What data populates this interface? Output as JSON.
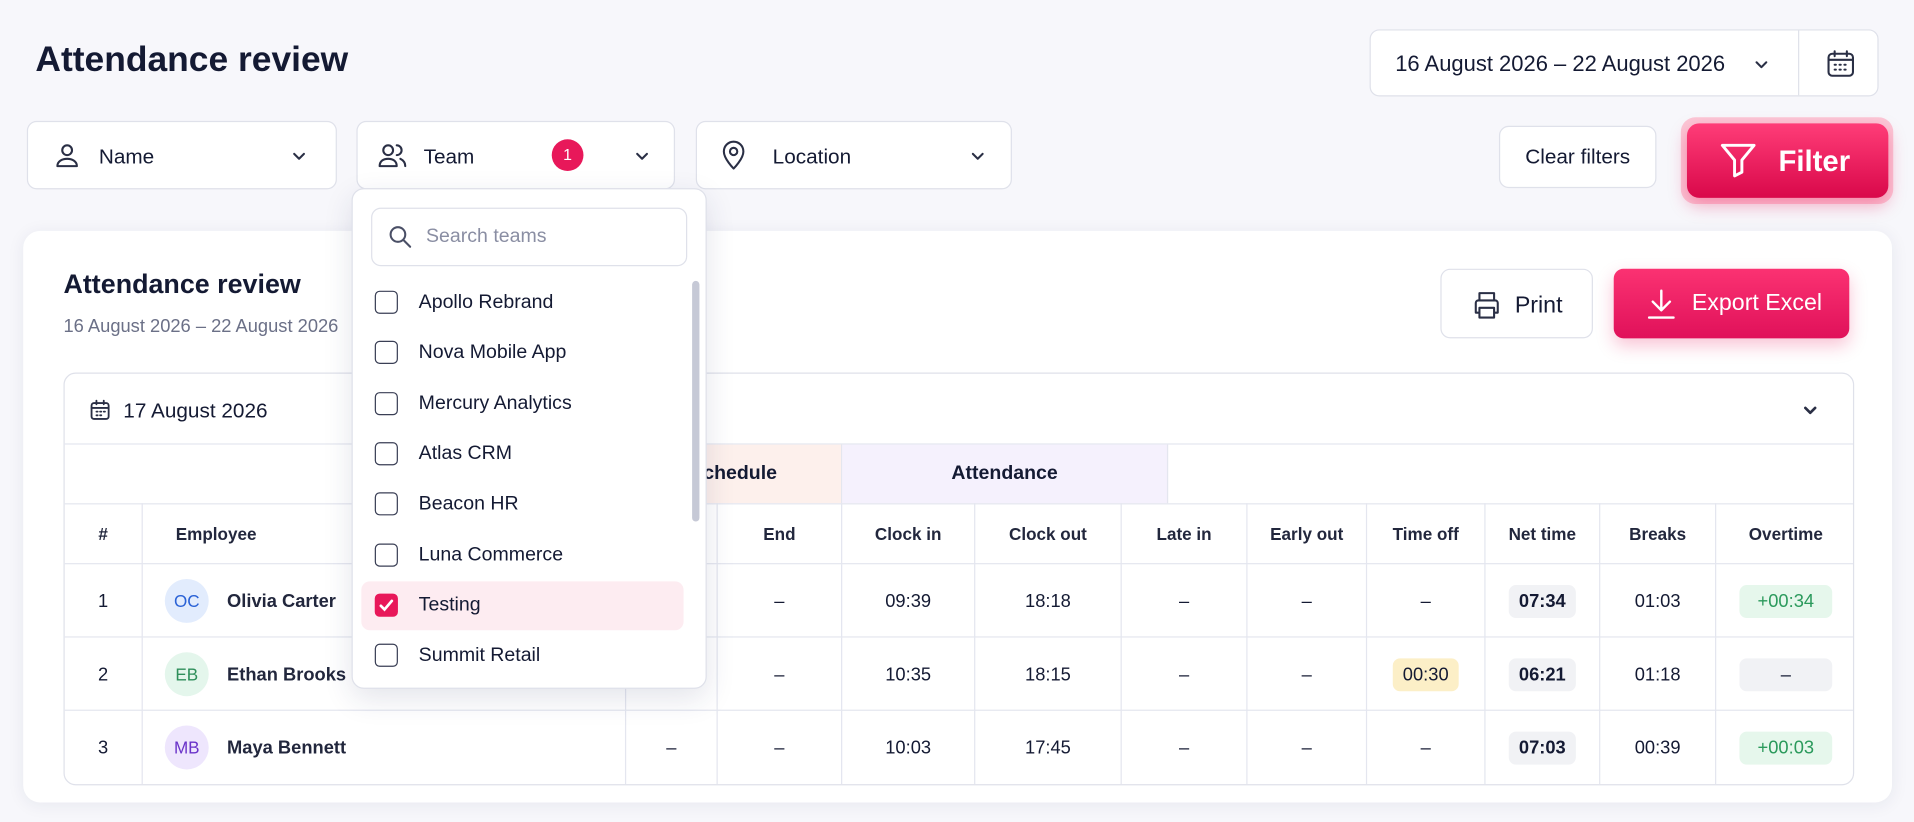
{
  "header": {
    "title": "Attendance review",
    "date_range": "16 August 2026 – 22 August 2026"
  },
  "filters": {
    "name": "Name",
    "team": "Team",
    "team_count": "1",
    "location": "Location",
    "clear": "Clear filters",
    "filter": "Filter"
  },
  "dropdown": {
    "search_placeholder": "Search teams",
    "options": [
      {
        "label": "Apollo Rebrand",
        "checked": false
      },
      {
        "label": "Nova Mobile App",
        "checked": false
      },
      {
        "label": "Mercury Analytics",
        "checked": false
      },
      {
        "label": "Atlas CRM",
        "checked": false
      },
      {
        "label": "Beacon HR",
        "checked": false
      },
      {
        "label": "Luna Commerce",
        "checked": false
      },
      {
        "label": "Testing",
        "checked": true
      },
      {
        "label": "Summit Retail",
        "checked": false
      }
    ]
  },
  "panel": {
    "title": "Attendance review",
    "subtitle": "16 August 2026 – 22 August 2026",
    "print": "Print",
    "export": "Export Excel"
  },
  "day": {
    "date": "17 August 2026"
  },
  "table": {
    "groups": [
      "Schedule",
      "Attendance"
    ],
    "columns": [
      "#",
      "Employee",
      null,
      "End",
      "Clock in",
      "Clock out",
      "Late in",
      "Early out",
      "Time off",
      "Net time",
      "Breaks",
      "Overtime"
    ],
    "rows": [
      {
        "number": "1",
        "initials": "OC",
        "avatar_color": "blue",
        "name": "Olivia Carter",
        "cells": [
          null,
          "–",
          "09:39",
          "18:18",
          "–",
          "–",
          "–",
          "07:34",
          "01:03",
          "+00:34"
        ]
      },
      {
        "number": "2",
        "initials": "EB",
        "avatar_color": "green",
        "name": "Ethan Brooks",
        "cells": [
          null,
          "–",
          "10:35",
          "18:15",
          "–",
          "–",
          "00:30",
          "06:21",
          "01:18",
          "–"
        ]
      },
      {
        "number": "3",
        "initials": "MB",
        "avatar_color": "purple",
        "name": "Maya Bennett",
        "cells": [
          "–",
          "–",
          "10:03",
          "17:45",
          "–",
          "–",
          "–",
          "07:03",
          "00:39",
          "+00:03"
        ]
      }
    ]
  }
}
